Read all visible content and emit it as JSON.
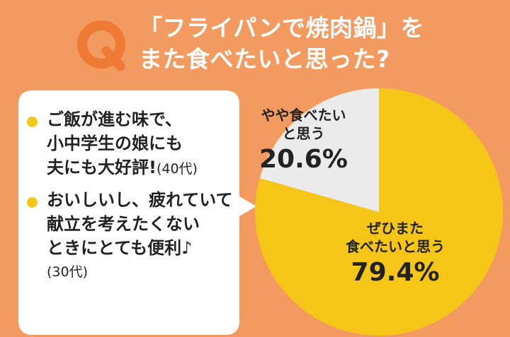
{
  "question": {
    "badge": "Q",
    "lines": [
      "「フライパンで焼肉鍋」を",
      "また食べたいと思った?"
    ]
  },
  "comments": [
    {
      "lines": [
        "ご飯が進む味で、",
        "小中学生の娘にも",
        "夫にも大好評!"
      ],
      "age": "(40代)"
    },
    {
      "lines": [
        "おいしいし、疲れていて",
        "献立を考えたくない",
        "ときにとても便利♪"
      ],
      "age": "(30代)"
    }
  ],
  "colors": {
    "background": "#f29a60",
    "accent_yellow": "#f5c518",
    "slice_grey": "#ebebeb",
    "q_badge": "#ee7a35"
  },
  "chart_data": {
    "type": "pie",
    "slices": [
      {
        "label_lines": [
          "ぜひまた",
          "食べたいと思う"
        ],
        "value": 79.4,
        "value_label": "79.4%",
        "color": "#f5c518"
      },
      {
        "label_lines": [
          "やや食べたい",
          "と思う"
        ],
        "value": 20.6,
        "value_label": "20.6%",
        "color": "#ebebeb"
      }
    ],
    "start_angle": "12 o'clock",
    "direction": "clockwise",
    "legend": "none",
    "title": ""
  }
}
